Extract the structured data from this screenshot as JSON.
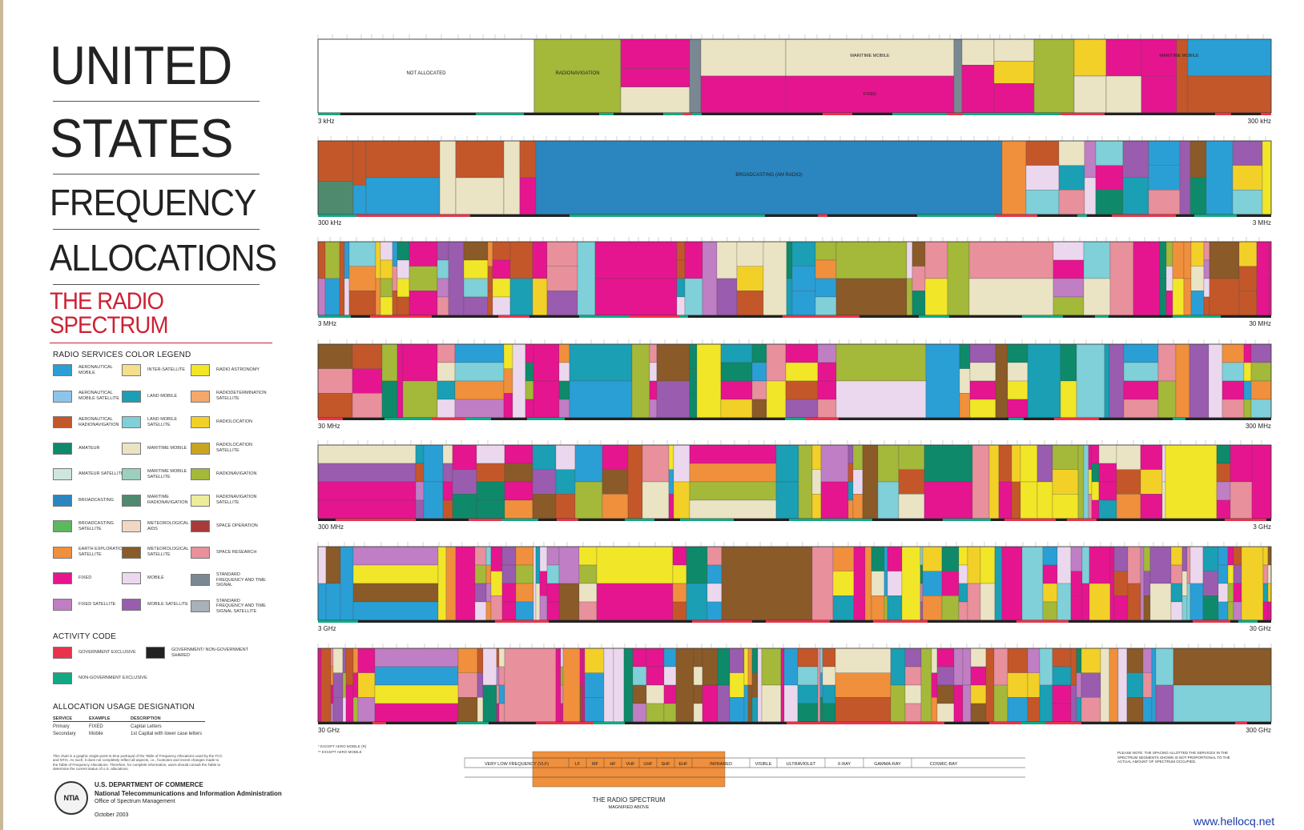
{
  "title": {
    "line1": "UNITED",
    "line2": "STATES",
    "line3": "FREQUENCY",
    "line4": "ALLOCATIONS",
    "subtitle": "THE RADIO SPECTRUM"
  },
  "legend": {
    "title": "RADIO SERVICES COLOR LEGEND",
    "items": [
      {
        "label": "AERONAUTICAL MOBILE",
        "color": "#2a9fd6"
      },
      {
        "label": "AERONAUTICAL MOBILE SATELLITE",
        "color": "#8cc4ec"
      },
      {
        "label": "AERONAUTICAL RADIONAVIGATION",
        "color": "#c4572a"
      },
      {
        "label": "AMATEUR",
        "color": "#0e8a6a"
      },
      {
        "label": "AMATEUR SATELLITE",
        "color": "#cfe6dc"
      },
      {
        "label": "BROADCASTING",
        "color": "#2b86c0"
      },
      {
        "label": "BROADCASTING SATELLITE",
        "color": "#5cb85c"
      },
      {
        "label": "EARTH EXPLORATION SATELLITE",
        "color": "#f0903c"
      },
      {
        "label": "FIXED",
        "color": "#e5158f"
      },
      {
        "label": "FIXED SATELLITE",
        "color": "#c07ec4"
      },
      {
        "label": "INTER-SATELLITE",
        "color": "#f4df8a"
      },
      {
        "label": "LAND MOBILE",
        "color": "#1a9fb5"
      },
      {
        "label": "LAND MOBILE SATELLITE",
        "color": "#7fd0d8"
      },
      {
        "label": "MARITIME MOBILE",
        "color": "#ebe4c4"
      },
      {
        "label": "MARITIME MOBILE SATELLITE",
        "color": "#9ccfc0"
      },
      {
        "label": "MARITIME RADIONAVIGATION",
        "color": "#4f8a6e"
      },
      {
        "label": "METEOROLOGICAL AIDS",
        "color": "#f0d8c4"
      },
      {
        "label": "METEOROLOGICAL SATELLITE",
        "color": "#8a5a28"
      },
      {
        "label": "MOBILE",
        "color": "#ecd8ee"
      },
      {
        "label": "MOBILE SATELLITE",
        "color": "#9a5cae"
      },
      {
        "label": "RADIO ASTRONOMY",
        "color": "#f2e628"
      },
      {
        "label": "RADIODETERMINATION SATELLITE",
        "color": "#f4a86a"
      },
      {
        "label": "RADIOLOCATION",
        "color": "#f2d028"
      },
      {
        "label": "RADIOLOCATION SATELLITE",
        "color": "#c9a420"
      },
      {
        "label": "RADIONAVIGATION",
        "color": "#a4b83a"
      },
      {
        "label": "RADIONAVIGATION SATELLITE",
        "color": "#ecec9a"
      },
      {
        "label": "SPACE OPERATION",
        "color": "#a83a3a"
      },
      {
        "label": "SPACE RESEARCH",
        "color": "#e8909c"
      },
      {
        "label": "STANDARD FREQUENCY AND TIME SIGNAL",
        "color": "#7a8894"
      },
      {
        "label": "STANDARD FREQUENCY AND TIME SIGNAL SATELLITE",
        "color": "#a8b0b8"
      }
    ]
  },
  "activity": {
    "title": "ACTIVITY CODE",
    "items": [
      {
        "label": "GOVERNMENT EXCLUSIVE",
        "color": "#e8344a"
      },
      {
        "label": "GOVERNMENT/ NON-GOVERNMENT SHARED",
        "color": "#222222"
      },
      {
        "label": "NON-GOVERNMENT EXCLUSIVE",
        "color": "#12a884"
      }
    ]
  },
  "usage": {
    "title": "ALLOCATION USAGE DESIGNATION",
    "headers": [
      "SERVICE",
      "EXAMPLE",
      "DESCRIPTION"
    ],
    "rows": [
      [
        "Primary",
        "FIXED",
        "Capital Letters"
      ],
      [
        "Secondary",
        "Mobile",
        "1st Capital with lower case letters"
      ]
    ]
  },
  "fineprint": "This chart is a graphic single-point-in-time portrayal of the Table of Frequency Allocations used by the FCC and NTIA. As such, it does not completely reflect all aspects, i.e., footnotes and recent changes made to the Table of Frequency Allocations. Therefore, for complete information, users should consult the Table to determine the current status of U.S. allocations.",
  "agency": {
    "seal": "NTIA",
    "line1": "U.S. DEPARTMENT OF COMMERCE",
    "line2": "National Telecommunications and Information Administration",
    "line3": "Office of Spectrum Management",
    "date": "October 2003"
  },
  "rows": [
    {
      "start": "3 kHz",
      "end": "300 kHz"
    },
    {
      "start": "300 kHz",
      "end": "3 MHz"
    },
    {
      "start": "3 MHz",
      "end": "30 MHz"
    },
    {
      "start": "30 MHz",
      "end": "300 MHz"
    },
    {
      "start": "300 MHz",
      "end": "3 GHz"
    },
    {
      "start": "3 GHz",
      "end": "30 GHz"
    },
    {
      "start": "30 GHz",
      "end": "300 GHz"
    }
  ],
  "row1_labels": [
    "NOT ALLOCATED",
    "RADIONAVIGATION",
    "MARITIME MOBILE",
    "MARITIME MOBILE",
    "FIXED",
    "AERONAUTICAL RADIONAVIGATION"
  ],
  "row2_labels": [
    "BROADCASTING (AM RADIO)"
  ],
  "footnotes": [
    "* EXCEPT AERO MOBILE (R)",
    "** EXCEPT AERO MOBILE"
  ],
  "spectrum": {
    "title": "THE RADIO SPECTRUM",
    "subtitle": "MAGNIFIED ABOVE",
    "bands": [
      "VERY LOW FREQUENCY (VLF)",
      "LF",
      "MF",
      "HF",
      "VHF",
      "UHF",
      "SHF",
      "EHF",
      "INFRARED",
      "VISIBLE",
      "ULTRAVIOLET",
      "X-RAY",
      "GAMMA-RAY",
      "COSMIC-RAY"
    ]
  },
  "please_note": "PLEASE NOTE: THE SPACING ALLOTTED THE SERVICES IN THE SPECTRUM SEGMENTS SHOWN IS NOT PROPORTIONAL TO THE ACTUAL AMOUNT OF SPECTRUM OCCUPIED.",
  "watermark": "www.hellocq.net"
}
